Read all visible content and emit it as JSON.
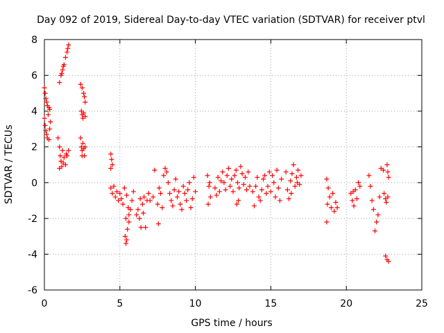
{
  "chart_data": {
    "type": "scatter",
    "title": "Day 092 of 2019, Sidereal Day-to-day VTEC variation (SDTVAR) for receiver ptvl",
    "xlabel": "GPS time / hours",
    "ylabel": "SDTVAR / TECUs",
    "xlim": [
      0,
      25
    ],
    "ylim": [
      -6,
      8
    ],
    "xticks": [
      "0",
      "5",
      "10",
      "15",
      "20",
      "25"
    ],
    "yticks": [
      "-6",
      "-4",
      "-2",
      "0",
      "2",
      "4",
      "6",
      "8"
    ],
    "grid": true,
    "marker": "+",
    "series_color": "#ff0000",
    "series": [
      {
        "name": "SDTVAR",
        "points": [
          [
            0.0,
            5.3
          ],
          [
            0.05,
            5.0
          ],
          [
            0.1,
            4.7
          ],
          [
            0.15,
            4.5
          ],
          [
            0.2,
            4.3
          ],
          [
            0.3,
            4.2
          ],
          [
            0.35,
            4.1
          ],
          [
            0.0,
            3.6
          ],
          [
            0.05,
            3.2
          ],
          [
            0.1,
            2.9
          ],
          [
            0.15,
            2.7
          ],
          [
            0.2,
            2.5
          ],
          [
            0.3,
            2.4
          ],
          [
            0.35,
            3.0
          ],
          [
            0.4,
            3.4
          ],
          [
            0.25,
            3.8
          ],
          [
            1.0,
            5.6
          ],
          [
            1.1,
            6.0
          ],
          [
            1.2,
            6.3
          ],
          [
            1.3,
            6.6
          ],
          [
            1.4,
            7.0
          ],
          [
            1.5,
            7.3
          ],
          [
            1.55,
            7.5
          ],
          [
            1.6,
            7.7
          ],
          [
            1.15,
            6.1
          ],
          [
            1.25,
            6.5
          ],
          [
            0.9,
            2.5
          ],
          [
            1.0,
            2.0
          ],
          [
            1.05,
            1.5
          ],
          [
            1.1,
            1.2
          ],
          [
            1.15,
            0.9
          ],
          [
            1.2,
            1.8
          ],
          [
            1.3,
            1.4
          ],
          [
            1.4,
            1.0
          ],
          [
            1.5,
            1.5
          ],
          [
            1.6,
            1.8
          ],
          [
            1.25,
            1.1
          ],
          [
            1.45,
            1.6
          ],
          [
            1.0,
            0.8
          ],
          [
            2.4,
            5.5
          ],
          [
            2.5,
            5.3
          ],
          [
            2.6,
            5.0
          ],
          [
            2.65,
            4.8
          ],
          [
            2.7,
            4.5
          ],
          [
            2.45,
            4.0
          ],
          [
            2.5,
            3.8
          ],
          [
            2.55,
            3.6
          ],
          [
            2.6,
            3.9
          ],
          [
            2.7,
            3.7
          ],
          [
            2.4,
            2.5
          ],
          [
            2.45,
            2.0
          ],
          [
            2.5,
            1.8
          ],
          [
            2.55,
            2.2
          ],
          [
            2.6,
            1.9
          ],
          [
            2.65,
            1.5
          ],
          [
            2.7,
            2.0
          ],
          [
            2.5,
            1.5
          ],
          [
            4.4,
            1.6
          ],
          [
            4.45,
            1.3
          ],
          [
            4.5,
            1.0
          ],
          [
            4.4,
            0.8
          ],
          [
            4.4,
            -0.3
          ],
          [
            4.5,
            -0.6
          ],
          [
            4.6,
            -0.2
          ],
          [
            4.7,
            -0.8
          ],
          [
            4.8,
            -0.5
          ],
          [
            4.9,
            -1.0
          ],
          [
            5.0,
            -0.6
          ],
          [
            5.1,
            -0.9
          ],
          [
            5.2,
            -1.2
          ],
          [
            5.3,
            -0.3
          ],
          [
            5.4,
            -2.0
          ],
          [
            5.35,
            -3.0
          ],
          [
            5.4,
            -3.4
          ],
          [
            5.45,
            -3.2
          ],
          [
            5.5,
            -2.6
          ],
          [
            5.6,
            -2.2
          ],
          [
            5.7,
            -1.5
          ],
          [
            5.8,
            -1.0
          ],
          [
            5.9,
            -0.5
          ],
          [
            5.6,
            -1.8
          ],
          [
            5.45,
            -0.7
          ],
          [
            5.55,
            -1.4
          ],
          [
            6.1,
            -1.8
          ],
          [
            6.2,
            -1.5
          ],
          [
            6.3,
            -2.0
          ],
          [
            6.4,
            -2.5
          ],
          [
            6.5,
            -1.2
          ],
          [
            6.6,
            -0.8
          ],
          [
            6.7,
            -2.5
          ],
          [
            6.8,
            -1.0
          ],
          [
            6.9,
            -0.6
          ],
          [
            6.35,
            -0.9
          ],
          [
            6.55,
            -1.7
          ],
          [
            7.0,
            -1.0
          ],
          [
            7.2,
            -0.8
          ],
          [
            7.3,
            0.7
          ],
          [
            7.5,
            -1.2
          ],
          [
            7.55,
            -2.3
          ],
          [
            7.6,
            -0.3
          ],
          [
            7.7,
            -0.6
          ],
          [
            7.8,
            -1.4
          ],
          [
            7.9,
            0.4
          ],
          [
            8.0,
            0.8
          ],
          [
            8.1,
            0.6
          ],
          [
            8.2,
            0.0
          ],
          [
            8.3,
            -0.6
          ],
          [
            8.4,
            -1.0
          ],
          [
            8.5,
            -1.3
          ],
          [
            8.6,
            -0.4
          ],
          [
            8.7,
            0.2
          ],
          [
            8.8,
            -0.8
          ],
          [
            8.9,
            -0.5
          ],
          [
            9.0,
            -1.2
          ],
          [
            9.1,
            -1.5
          ],
          [
            9.2,
            -0.2
          ],
          [
            9.3,
            -0.6
          ],
          [
            9.4,
            -1.0
          ],
          [
            9.5,
            -0.4
          ],
          [
            9.6,
            0.0
          ],
          [
            9.7,
            -1.4
          ],
          [
            9.8,
            -0.9
          ],
          [
            9.9,
            0.3
          ],
          [
            10.0,
            -0.5
          ],
          [
            10.8,
            0.4
          ],
          [
            10.9,
            -0.2
          ],
          [
            11.0,
            -0.8
          ],
          [
            10.85,
            -1.2
          ],
          [
            10.95,
            0.0
          ],
          [
            11.3,
            -0.3
          ],
          [
            11.4,
            -0.7
          ],
          [
            11.5,
            0.3
          ],
          [
            11.6,
            -0.5
          ],
          [
            11.7,
            0.1
          ],
          [
            11.8,
            0.6
          ],
          [
            11.9,
            0.0
          ],
          [
            12.0,
            -0.4
          ],
          [
            12.1,
            0.4
          ],
          [
            12.2,
            0.8
          ],
          [
            12.3,
            -0.2
          ],
          [
            12.4,
            0.2
          ],
          [
            12.5,
            -0.5
          ],
          [
            12.6,
            0.4
          ],
          [
            12.7,
            0.7
          ],
          [
            12.8,
            0.0
          ],
          [
            12.9,
            -0.3
          ],
          [
            13.0,
            0.9
          ],
          [
            13.1,
            0.5
          ],
          [
            13.2,
            -0.1
          ],
          [
            13.3,
            0.3
          ],
          [
            13.4,
            -0.4
          ],
          [
            13.5,
            0.6
          ],
          [
            13.6,
            -0.2
          ],
          [
            12.75,
            -1.2
          ],
          [
            12.85,
            -1.0
          ],
          [
            13.8,
            -0.5
          ],
          [
            13.9,
            -1.3
          ],
          [
            14.0,
            -0.2
          ],
          [
            14.1,
            0.3
          ],
          [
            14.2,
            -0.8
          ],
          [
            14.3,
            -1.0
          ],
          [
            14.4,
            -0.4
          ],
          [
            14.5,
            0.2
          ],
          [
            14.6,
            0.4
          ],
          [
            14.7,
            -0.6
          ],
          [
            14.8,
            -0.2
          ],
          [
            14.9,
            0.6
          ],
          [
            15.0,
            -0.5
          ],
          [
            15.1,
            0.4
          ],
          [
            15.2,
            0.0
          ],
          [
            15.3,
            -0.8
          ],
          [
            15.4,
            0.7
          ],
          [
            15.5,
            -0.3
          ],
          [
            15.6,
            -1.0
          ],
          [
            15.7,
            0.2
          ],
          [
            16.0,
            0.6
          ],
          [
            16.1,
            -0.4
          ],
          [
            16.2,
            -0.9
          ],
          [
            16.3,
            0.1
          ],
          [
            16.4,
            0.5
          ],
          [
            16.5,
            1.0
          ],
          [
            16.6,
            -0.2
          ],
          [
            16.7,
            0.3
          ],
          [
            16.8,
            0.7
          ],
          [
            16.9,
            -0.1
          ],
          [
            17.0,
            0.4
          ],
          [
            16.35,
            -0.6
          ],
          [
            16.75,
            0.0
          ],
          [
            18.7,
            0.2
          ],
          [
            18.8,
            -0.3
          ],
          [
            18.75,
            -1.2
          ],
          [
            18.7,
            -2.2
          ],
          [
            18.9,
            -0.8
          ],
          [
            19.0,
            -1.4
          ],
          [
            19.1,
            -0.6
          ],
          [
            19.2,
            -1.6
          ],
          [
            19.3,
            -1.1
          ],
          [
            19.4,
            -1.4
          ],
          [
            20.3,
            -0.6
          ],
          [
            20.4,
            -1.0
          ],
          [
            20.5,
            -1.3
          ],
          [
            20.6,
            -0.4
          ],
          [
            20.7,
            -0.9
          ],
          [
            20.8,
            0.0
          ],
          [
            20.9,
            -0.2
          ],
          [
            20.45,
            -0.5
          ],
          [
            21.5,
            0.4
          ],
          [
            21.6,
            -0.2
          ],
          [
            21.7,
            -1.0
          ],
          [
            21.8,
            -1.5
          ],
          [
            21.9,
            -2.7
          ],
          [
            22.0,
            -2.2
          ],
          [
            22.1,
            -1.8
          ],
          [
            22.2,
            -0.8
          ],
          [
            22.3,
            0.8
          ],
          [
            22.45,
            0.7
          ],
          [
            22.5,
            -0.6
          ],
          [
            22.6,
            -0.9
          ],
          [
            22.65,
            -1.1
          ],
          [
            22.7,
            1.0
          ],
          [
            22.75,
            0.6
          ],
          [
            22.8,
            0.3
          ],
          [
            22.75,
            -0.8
          ],
          [
            22.6,
            -4.1
          ],
          [
            22.7,
            -4.3
          ],
          [
            22.8,
            -4.4
          ]
        ]
      }
    ]
  }
}
